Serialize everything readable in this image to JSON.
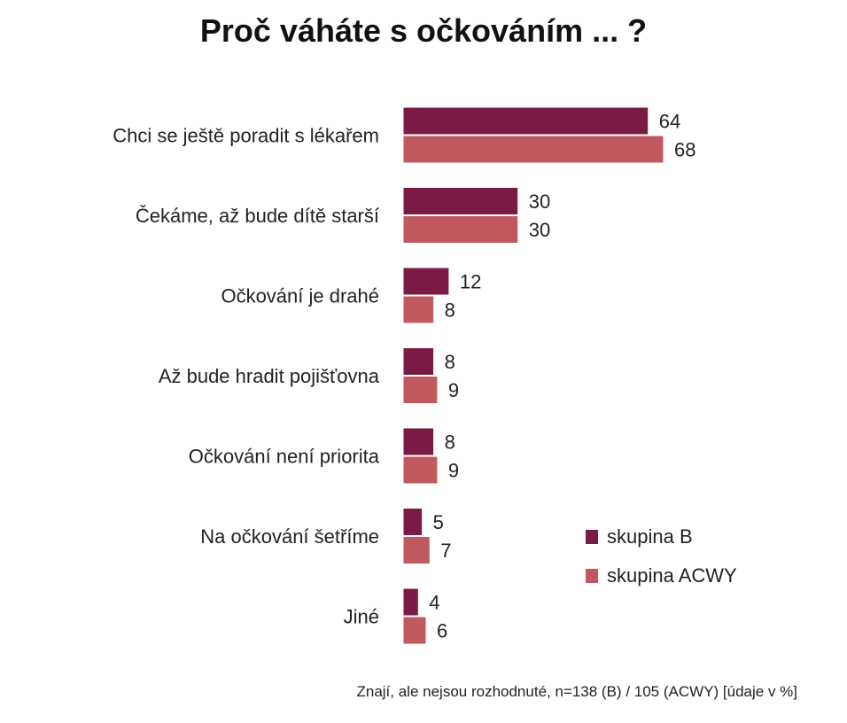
{
  "chart_data": {
    "type": "bar",
    "orientation": "horizontal",
    "title": "Proč váháte s očkováním ... ?",
    "categories": [
      "Chci se ještě poradit s lékařem",
      "Čekáme, až bude dítě starší",
      "Očkování je drahé",
      "Až bude hradit pojišťovna",
      "Očkování není priorita",
      "Na očkování šetříme",
      "Jiné"
    ],
    "series": [
      {
        "name": "skupina B",
        "color": "#7B1B45",
        "values": [
          64,
          30,
          12,
          8,
          8,
          5,
          4
        ]
      },
      {
        "name": "skupina ACWY",
        "color": "#C0595E",
        "values": [
          68,
          30,
          8,
          9,
          9,
          7,
          6
        ]
      }
    ],
    "xlim": [
      0,
      100
    ],
    "grid": false,
    "legend_position": "right",
    "footnote": "Znají, ale nejsou rozhodnuté, n=138 (B) / 105 (ACWY)  [údaje v %]"
  }
}
